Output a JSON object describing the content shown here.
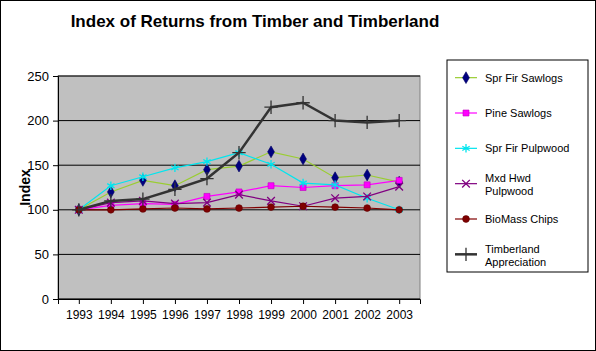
{
  "chart_data": {
    "type": "line",
    "title": "Index of Returns from Timber and Timberland",
    "y_label": "Index",
    "categories": [
      "1993",
      "1994",
      "1995",
      "1996",
      "1997",
      "1998",
      "1999",
      "2000",
      "2001",
      "2002",
      "2003"
    ],
    "ylim": [
      0,
      250
    ],
    "yticks": [
      0,
      50,
      100,
      150,
      200,
      250
    ],
    "grid": true,
    "legend": "right",
    "series": [
      {
        "name": "Spr Fir Sawlogs",
        "color": "#9acd32",
        "marker": "diamond",
        "values": [
          100,
          120,
          133,
          127,
          145,
          149,
          165,
          157,
          136,
          139,
          131
        ]
      },
      {
        "name": "Pine Sawlogs",
        "color": "#ff00ff",
        "marker": "square",
        "values": [
          100,
          105,
          107,
          106,
          115,
          120,
          127,
          125,
          127,
          128,
          133
        ]
      },
      {
        "name": "Spr Fir Pulpwood",
        "color": "#00e5ee",
        "marker": "asterisk",
        "values": [
          100,
          127,
          137,
          147,
          154,
          164,
          151,
          130,
          128,
          113,
          100
        ]
      },
      {
        "name": "Mxd Hwd Pulpwood",
        "color": "#800080",
        "marker": "x",
        "values": [
          100,
          108,
          110,
          107,
          108,
          117,
          110,
          104,
          113,
          115,
          126
        ]
      },
      {
        "name": "BioMass Chips",
        "color": "#800000",
        "marker": "circle",
        "values": [
          100,
          100,
          101,
          102,
          101,
          102,
          103,
          104,
          103,
          102,
          100
        ]
      },
      {
        "name": "Timberland Appreciation",
        "color": "#333333",
        "marker": "plus",
        "values": [
          100,
          110,
          112,
          123,
          135,
          164,
          215,
          220,
          200,
          198,
          200
        ]
      }
    ]
  }
}
